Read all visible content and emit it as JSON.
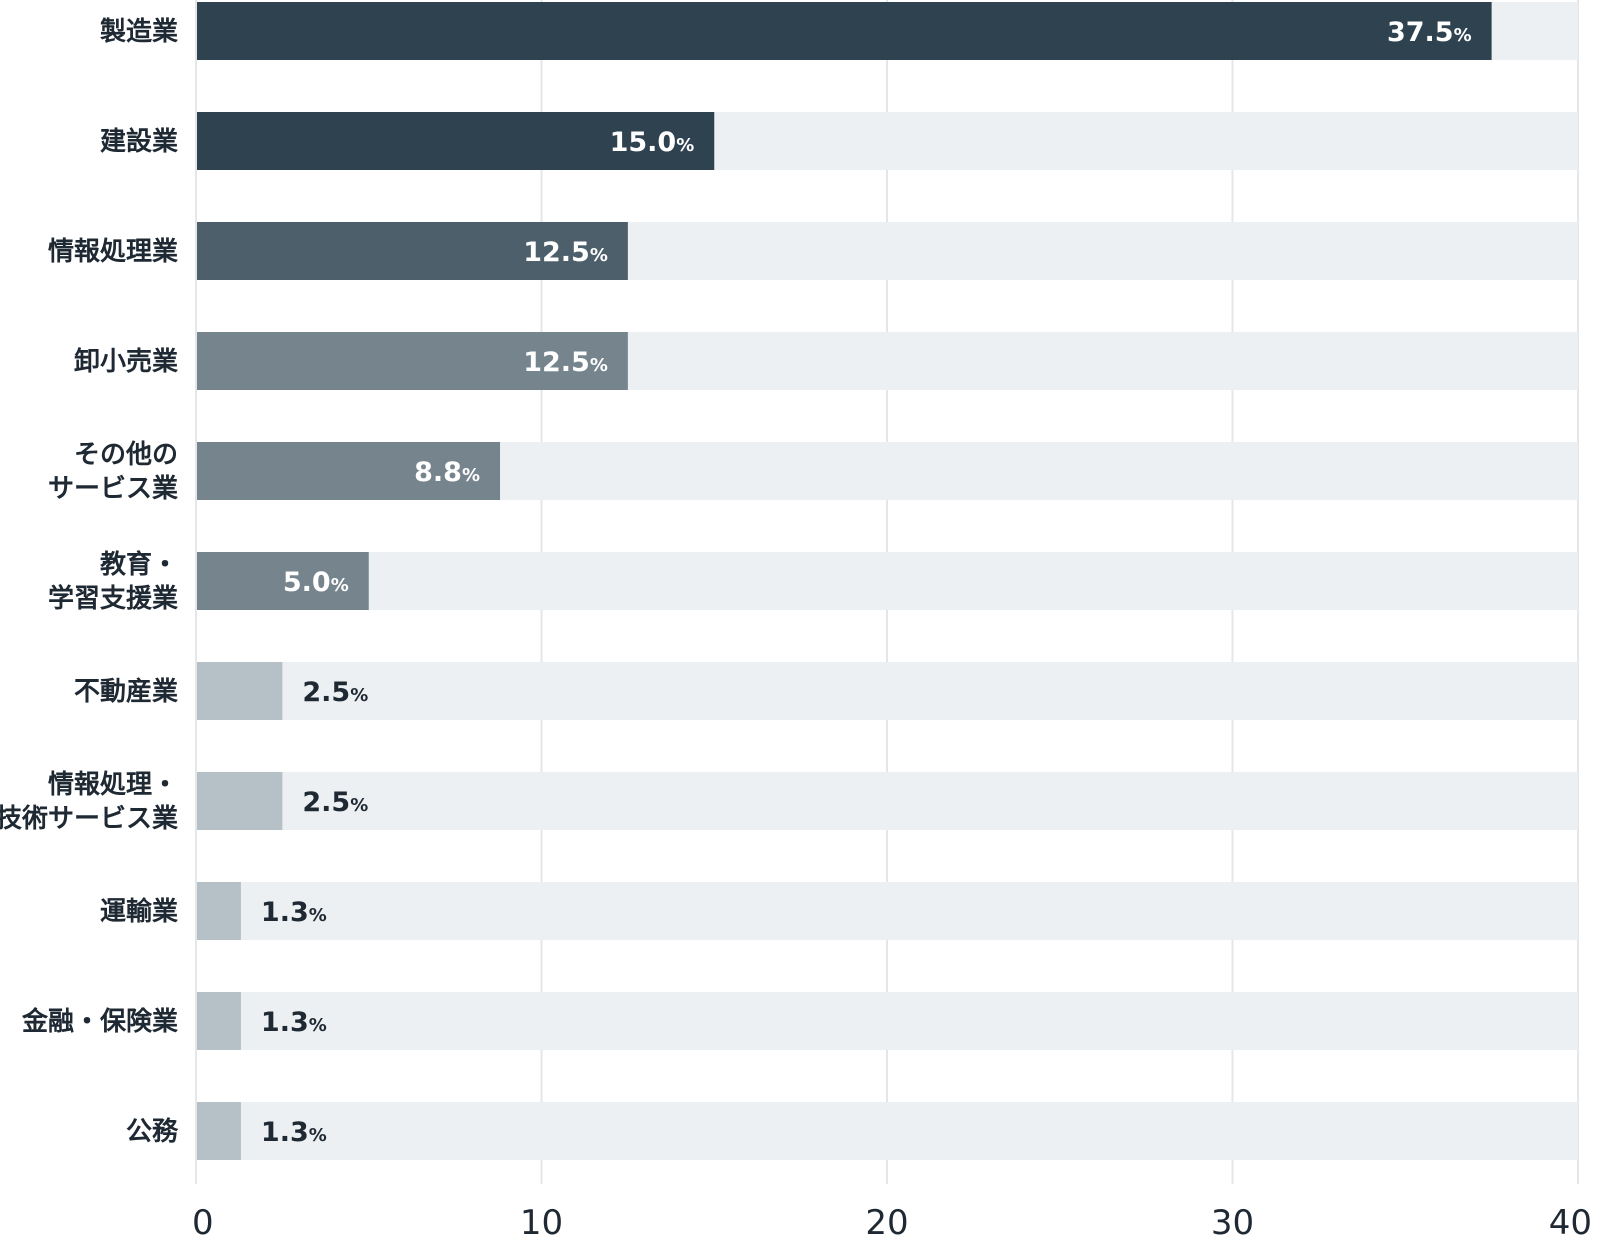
{
  "chart_data": {
    "type": "bar",
    "orientation": "horizontal",
    "categories": [
      [
        "製造業"
      ],
      [
        "建設業"
      ],
      [
        "情報処理業"
      ],
      [
        "卸小売業"
      ],
      [
        "その他の",
        "サービス業"
      ],
      [
        "教育・",
        "学習支援業"
      ],
      [
        "不動産業"
      ],
      [
        "情報処理・",
        "技術サービス業"
      ],
      [
        "運輸業"
      ],
      [
        "金融・保険業"
      ],
      [
        "公務"
      ]
    ],
    "values": [
      37.5,
      15.0,
      12.5,
      12.5,
      8.8,
      5.0,
      2.5,
      2.5,
      1.3,
      1.3,
      1.3
    ],
    "value_labels": [
      "37.5",
      "15.0",
      "12.5",
      "12.5",
      "8.8",
      "5.0",
      "2.5",
      "2.5",
      "1.3",
      "1.3",
      "1.3"
    ],
    "unit_label": "%",
    "bar_colors": [
      "#2e4250",
      "#2e4250",
      "#4d5f6b",
      "#75848d",
      "#75848d",
      "#75848d",
      "#b5c0c7",
      "#b5c0c7",
      "#b5c0c7",
      "#b5c0c7",
      "#b5c0c7"
    ],
    "label_colors": [
      "#ffffff",
      "#ffffff",
      "#ffffff",
      "#ffffff",
      "#ffffff",
      "#ffffff",
      "#1f2933",
      "#1f2933",
      "#1f2933",
      "#1f2933",
      "#1f2933"
    ],
    "track_color": "#ecf0f3",
    "grid_color": "#e3e7ea",
    "xlim": [
      0,
      40
    ],
    "xticks": [
      0,
      10,
      20,
      30,
      40
    ],
    "grid": true,
    "legend": "none",
    "title": "",
    "xlabel": "",
    "ylabel": ""
  }
}
